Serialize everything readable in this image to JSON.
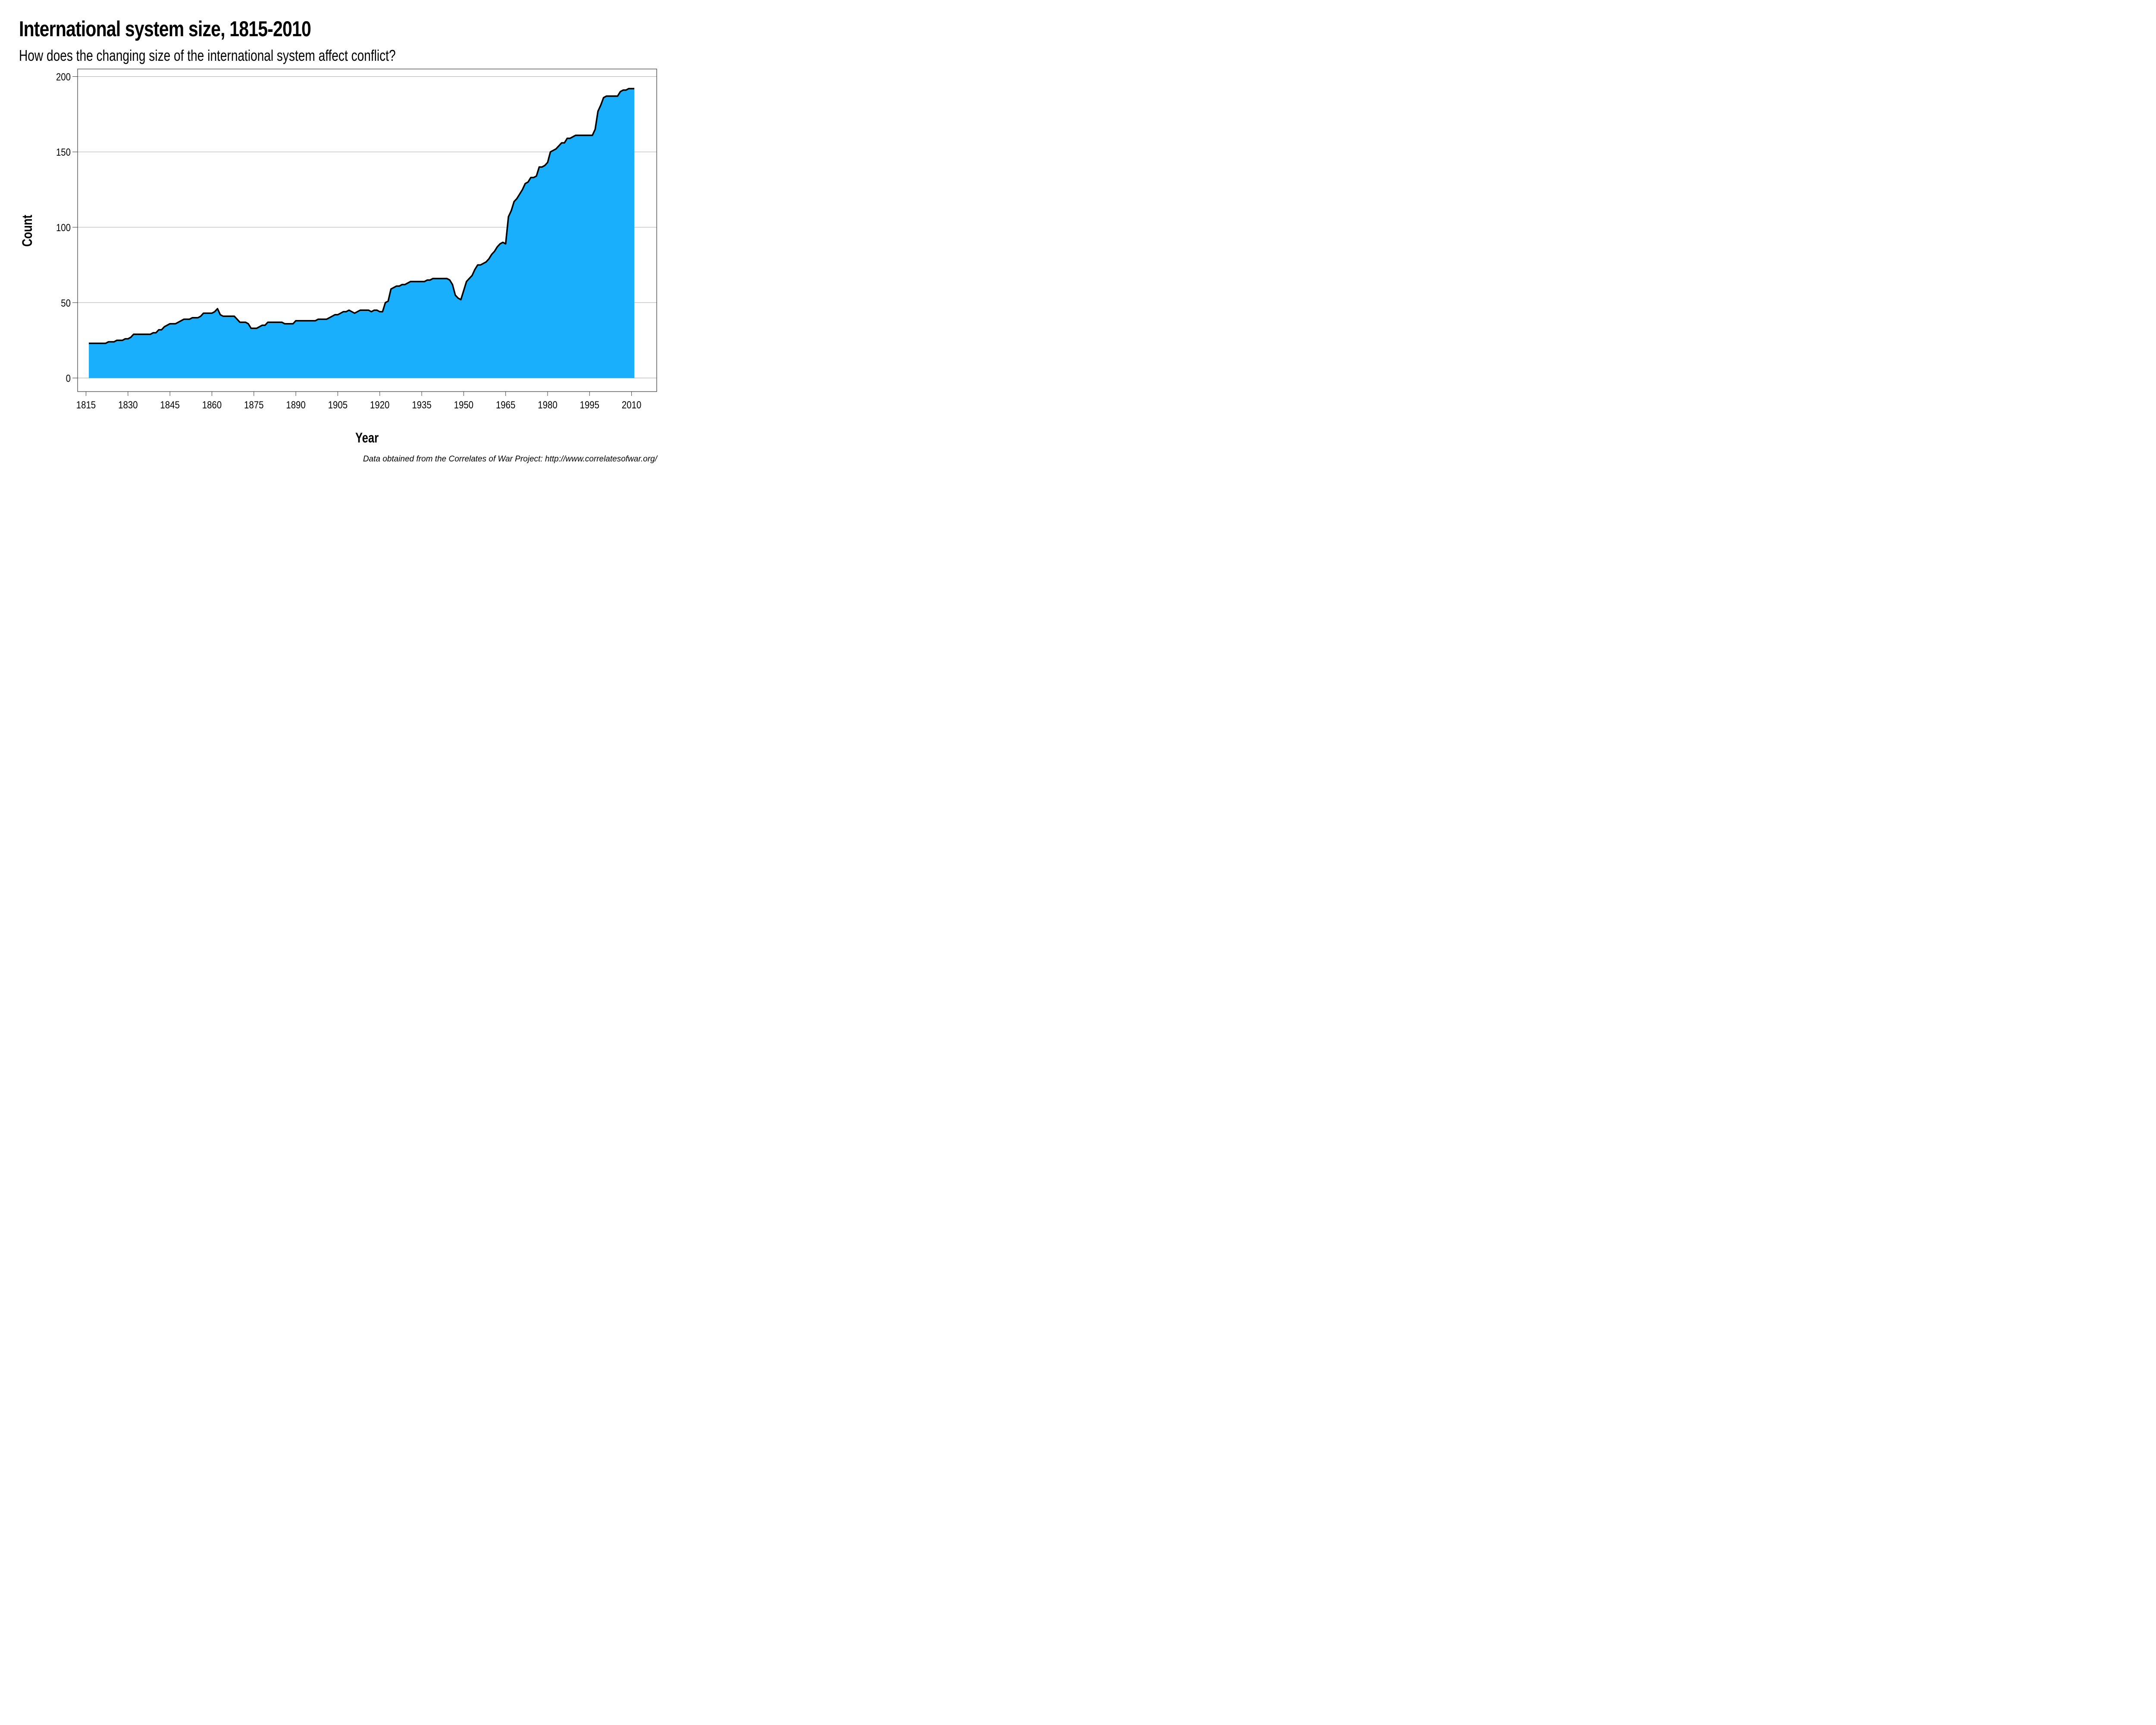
{
  "header": {
    "title": "International system size, 1815-2010",
    "subtitle": "How does the changing size of the international system affect conflict?"
  },
  "caption": "Data obtained from the Correlates of War Project: http://www.correlatesofwar.org/",
  "colors": {
    "area_fill": "#1AAFFD",
    "line": "#000000",
    "grid": "#AAAAAA",
    "frame": "#333333"
  },
  "chart_data": {
    "type": "area",
    "title": "International system size, 1815-2010",
    "subtitle": "How does the changing size of the international system affect conflict?",
    "xlabel": "Year",
    "ylabel": "Count",
    "xlim": [
      1812,
      2019
    ],
    "ylim": [
      -9,
      205
    ],
    "x_ticks": [
      1815,
      1830,
      1845,
      1860,
      1875,
      1890,
      1905,
      1920,
      1935,
      1950,
      1965,
      1980,
      1995,
      2010
    ],
    "y_ticks": [
      0,
      50,
      100,
      150,
      200
    ],
    "grid": "horizontal",
    "legend": "none",
    "x": [
      1816,
      1817,
      1818,
      1819,
      1820,
      1821,
      1822,
      1823,
      1824,
      1825,
      1826,
      1827,
      1828,
      1829,
      1830,
      1831,
      1832,
      1833,
      1834,
      1835,
      1836,
      1837,
      1838,
      1839,
      1840,
      1841,
      1842,
      1843,
      1844,
      1845,
      1846,
      1847,
      1848,
      1849,
      1850,
      1851,
      1852,
      1853,
      1854,
      1855,
      1856,
      1857,
      1858,
      1859,
      1860,
      1861,
      1862,
      1863,
      1864,
      1865,
      1866,
      1867,
      1868,
      1869,
      1870,
      1871,
      1872,
      1873,
      1874,
      1875,
      1876,
      1877,
      1878,
      1879,
      1880,
      1881,
      1882,
      1883,
      1884,
      1885,
      1886,
      1887,
      1888,
      1889,
      1890,
      1891,
      1892,
      1893,
      1894,
      1895,
      1896,
      1897,
      1898,
      1899,
      1900,
      1901,
      1902,
      1903,
      1904,
      1905,
      1906,
      1907,
      1908,
      1909,
      1910,
      1911,
      1912,
      1913,
      1914,
      1915,
      1916,
      1917,
      1918,
      1919,
      1920,
      1921,
      1922,
      1923,
      1924,
      1925,
      1926,
      1927,
      1928,
      1929,
      1930,
      1931,
      1932,
      1933,
      1934,
      1935,
      1936,
      1937,
      1938,
      1939,
      1940,
      1941,
      1942,
      1943,
      1944,
      1945,
      1946,
      1947,
      1948,
      1949,
      1950,
      1951,
      1952,
      1953,
      1954,
      1955,
      1956,
      1957,
      1958,
      1959,
      1960,
      1961,
      1962,
      1963,
      1964,
      1965,
      1966,
      1967,
      1968,
      1969,
      1970,
      1971,
      1972,
      1973,
      1974,
      1975,
      1976,
      1977,
      1978,
      1979,
      1980,
      1981,
      1982,
      1983,
      1984,
      1985,
      1986,
      1987,
      1988,
      1989,
      1990,
      1991,
      1992,
      1993,
      1994,
      1995,
      1996,
      1997,
      1998,
      1999,
      2000,
      2001,
      2002,
      2003,
      2004,
      2005,
      2006,
      2007,
      2008,
      2009,
      2010,
      2011
    ],
    "series": [
      {
        "name": "Count",
        "values": [
          23,
          23,
          23,
          23,
          23,
          23,
          23,
          24,
          24,
          24,
          25,
          25,
          25,
          26,
          26,
          27,
          29,
          29,
          29,
          29,
          29,
          29,
          29,
          30,
          30,
          32,
          32,
          34,
          35,
          36,
          36,
          36,
          37,
          38,
          39,
          39,
          39,
          40,
          40,
          40,
          41,
          43,
          43,
          43,
          43,
          44,
          46,
          42,
          41,
          41,
          41,
          41,
          41,
          39,
          37,
          37,
          37,
          36,
          33,
          33,
          33,
          34,
          35,
          35,
          37,
          37,
          37,
          37,
          37,
          37,
          36,
          36,
          36,
          36,
          38,
          38,
          38,
          38,
          38,
          38,
          38,
          38,
          39,
          39,
          39,
          39,
          40,
          41,
          42,
          42,
          43,
          44,
          44,
          45,
          44,
          43,
          44,
          45,
          45,
          45,
          45,
          44,
          45,
          45,
          44,
          44,
          50,
          51,
          59,
          60,
          61,
          61,
          62,
          62,
          63,
          64,
          64,
          64,
          64,
          64,
          64,
          65,
          65,
          66,
          66,
          66,
          66,
          66,
          66,
          65,
          62,
          55,
          53,
          52,
          58,
          64,
          66,
          68,
          72,
          75,
          75,
          76,
          77,
          79,
          82,
          84,
          87,
          89,
          90,
          89,
          107,
          111,
          117,
          119,
          122,
          125,
          129,
          130,
          133,
          133,
          134,
          140,
          140,
          141,
          143,
          150,
          151,
          152,
          154,
          156,
          156,
          159,
          159,
          160,
          161,
          161,
          161,
          161,
          161,
          161,
          161,
          165,
          177,
          181,
          186,
          187,
          187,
          187,
          187,
          187,
          190,
          191,
          191,
          192,
          192,
          192,
          192,
          193,
          193,
          194,
          194,
          194,
          195
        ]
      }
    ]
  }
}
